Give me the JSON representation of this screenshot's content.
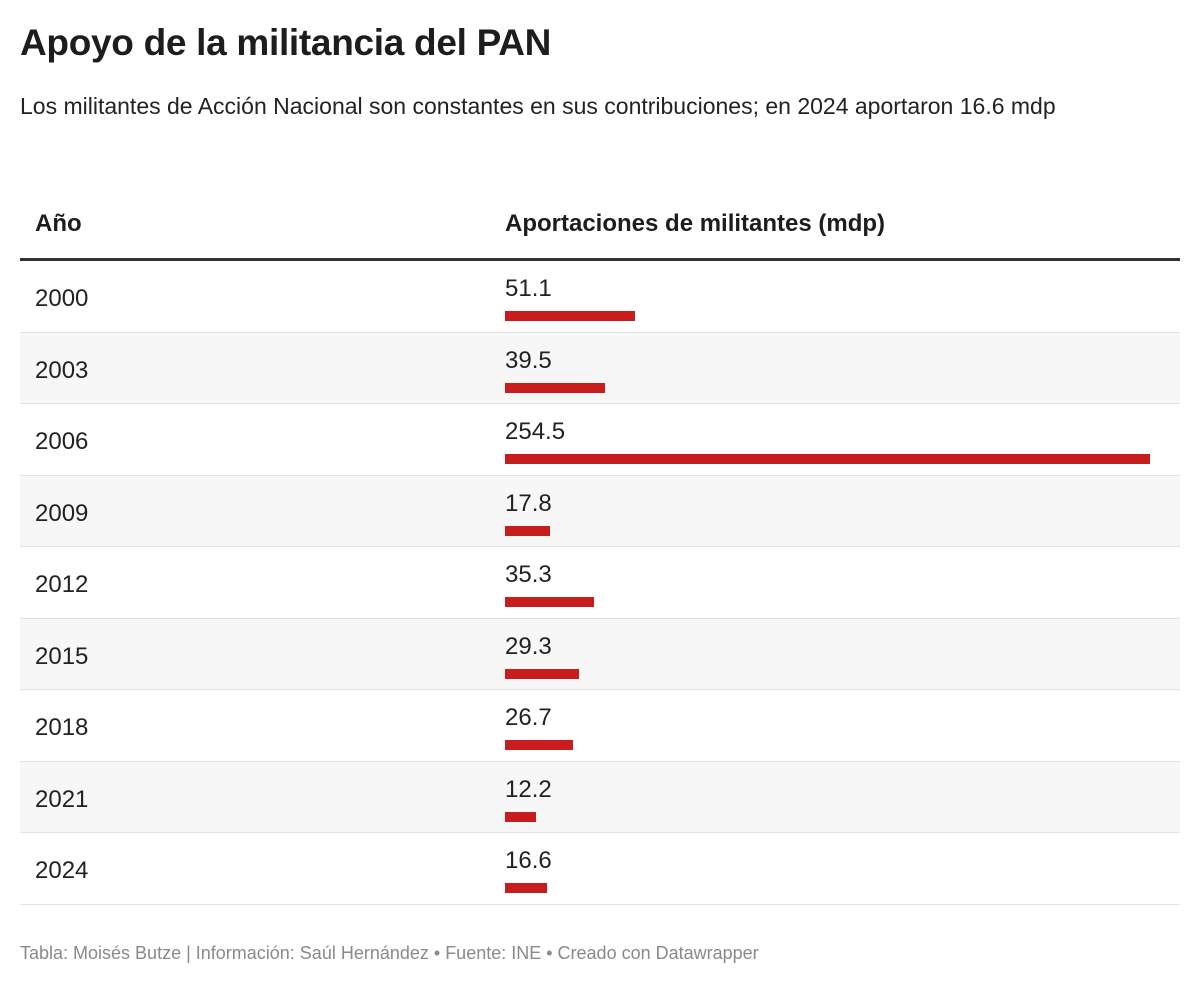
{
  "title": "Apoyo de la militancia del PAN",
  "subtitle": "Los militantes de Acción Nacional son constantes en sus contribuciones; en 2024 aportaron 16.6 mdp",
  "footer": "Tabla: Moisés Butze | Información: Saúl Hernández • Fuente: INE • Creado con Datawrapper",
  "chart_data": {
    "type": "table",
    "columns": [
      "Año",
      "Aportaciones de militantes (mdp)"
    ],
    "bar_color": "#c71e1d",
    "rows": [
      {
        "year": "2000",
        "value": 51.1,
        "label": "51.1"
      },
      {
        "year": "2003",
        "value": 39.5,
        "label": "39.5"
      },
      {
        "year": "2006",
        "value": 254.5,
        "label": "254.5"
      },
      {
        "year": "2009",
        "value": 17.8,
        "label": "17.8"
      },
      {
        "year": "2012",
        "value": 35.3,
        "label": "35.3"
      },
      {
        "year": "2015",
        "value": 29.3,
        "label": "29.3"
      },
      {
        "year": "2018",
        "value": 26.7,
        "label": "26.7"
      },
      {
        "year": "2021",
        "value": 12.2,
        "label": "12.2"
      },
      {
        "year": "2024",
        "value": 16.6,
        "label": "16.6"
      }
    ]
  }
}
